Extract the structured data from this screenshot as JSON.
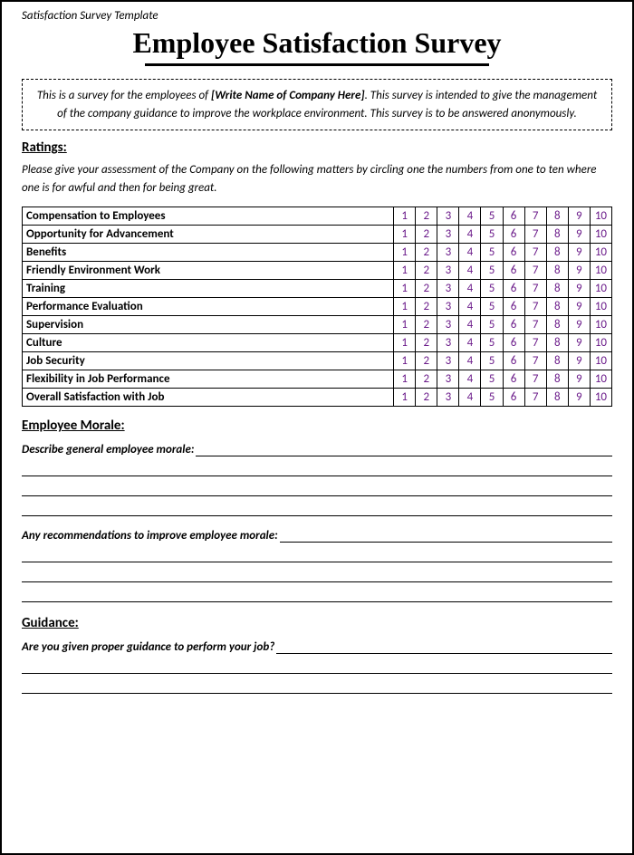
{
  "template_label": "Satisfaction Survey Template",
  "title": "Employee Satisfaction Survey",
  "intro": {
    "part1": "This is a survey for the employees of ",
    "company": "[Write Name of Company Here]",
    "part2": ". This survey is intended to give the management of the company guidance to improve the workplace environment. This survey is to be answered anonymously."
  },
  "ratings": {
    "heading": "Ratings:",
    "instructions": "Please give your assessment of the Company on the following matters by circling one the numbers from one to ten where one is for awful and then for being great.",
    "scale": [
      "1",
      "2",
      "3",
      "4",
      "5",
      "6",
      "7",
      "8",
      "9",
      "10"
    ],
    "items": [
      "Compensation to Employees",
      "Opportunity for Advancement",
      "Benefits",
      "Friendly Environment Work",
      "Training",
      "Performance Evaluation",
      "Supervision",
      "Culture",
      "Job Security",
      "Flexibility in Job Performance",
      "Overall Satisfaction with Job"
    ],
    "number_color": "#6b1b8a"
  },
  "morale": {
    "heading": "Employee Morale:",
    "prompt1": "Describe general employee morale:",
    "prompt2": "Any recommendations to improve employee morale:"
  },
  "guidance": {
    "heading": "Guidance:",
    "prompt": "Are you given proper guidance to perform your job?"
  },
  "colors": {
    "border": "#000000",
    "text": "#000000",
    "background": "#ffffff"
  },
  "fonts": {
    "body": "Calibri, Arial, sans-serif",
    "title": "Times New Roman, serif"
  }
}
